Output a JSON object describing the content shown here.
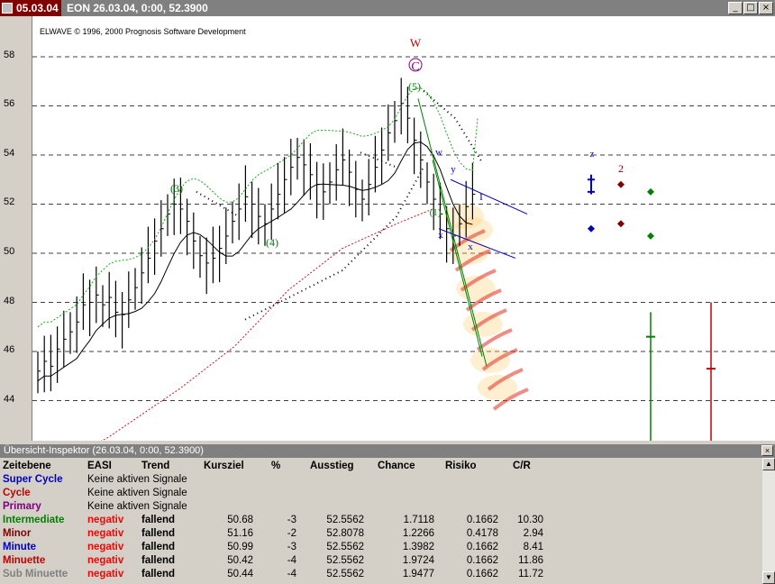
{
  "titlebar": {
    "date": "05.03.04",
    "title": "EON  26.03.04, 0:00, 52.3900",
    "btn_minimize": "_",
    "btn_maximize": "□",
    "btn_close": "×"
  },
  "chart": {
    "copyright": "ELWAVE © 1996, 2000 Prognosis Software Development",
    "y_ticks": [
      "58",
      "56",
      "54",
      "52",
      "50",
      "48",
      "46",
      "44"
    ],
    "wave_labels": {
      "W": "W",
      "C": "C",
      "five": "(5)",
      "three": "(3)",
      "four": "(4)",
      "w_small": "w",
      "x_small": "x",
      "y_small": "y",
      "one": "(1)",
      "x2": "x",
      "x3": "x",
      "roman_one": "I",
      "z": "z",
      "two": "2"
    },
    "colors": {
      "green": "#008000",
      "red": "#c00000",
      "blue": "#0000c0",
      "purple": "#800080",
      "maroon": "#800000"
    }
  },
  "inspector": {
    "title": "Übersicht-Inspektor (26.03.04, 0:00, 52.3900)",
    "close": "×",
    "headers": [
      "Zeitebene",
      "EASI",
      "Trend",
      "Kursziel",
      "%",
      "Ausstieg",
      "Chance",
      "Risiko",
      "C/R"
    ],
    "rows": [
      {
        "level": "Super Cycle",
        "color": "#0000c0",
        "note": "Keine aktiven Signale"
      },
      {
        "level": "Cycle",
        "color": "#c00000",
        "note": "Keine aktiven Signale"
      },
      {
        "level": "Primary",
        "color": "#800080",
        "note": "Keine aktiven Signale"
      },
      {
        "level": "Intermediate",
        "color": "#008000",
        "easi": "negativ",
        "trend": "fallend",
        "kursziel": "50.68",
        "pct": "-3",
        "ausstieg": "52.5562",
        "chance": "1.7118",
        "risiko": "0.1662",
        "cr": "10.30"
      },
      {
        "level": "Minor",
        "color": "#800000",
        "easi": "negativ",
        "trend": "fallend",
        "kursziel": "51.16",
        "pct": "-2",
        "ausstieg": "52.8078",
        "chance": "1.2266",
        "risiko": "0.4178",
        "cr": "2.94"
      },
      {
        "level": "Minute",
        "color": "#0000c0",
        "easi": "negativ",
        "trend": "fallend",
        "kursziel": "50.99",
        "pct": "-3",
        "ausstieg": "52.5562",
        "chance": "1.3982",
        "risiko": "0.1662",
        "cr": "8.41"
      },
      {
        "level": "Minuette",
        "color": "#c00000",
        "easi": "negativ",
        "trend": "fallend",
        "kursziel": "50.42",
        "pct": "-4",
        "ausstieg": "52.5562",
        "chance": "1.9724",
        "risiko": "0.1662",
        "cr": "11.86"
      },
      {
        "level": "Sub Minuette",
        "color": "#808080",
        "easi": "negativ",
        "trend": "fallend",
        "kursziel": "50.44",
        "pct": "-4",
        "ausstieg": "52.5562",
        "chance": "1.9477",
        "risiko": "0.1662",
        "cr": "11.72"
      }
    ]
  }
}
